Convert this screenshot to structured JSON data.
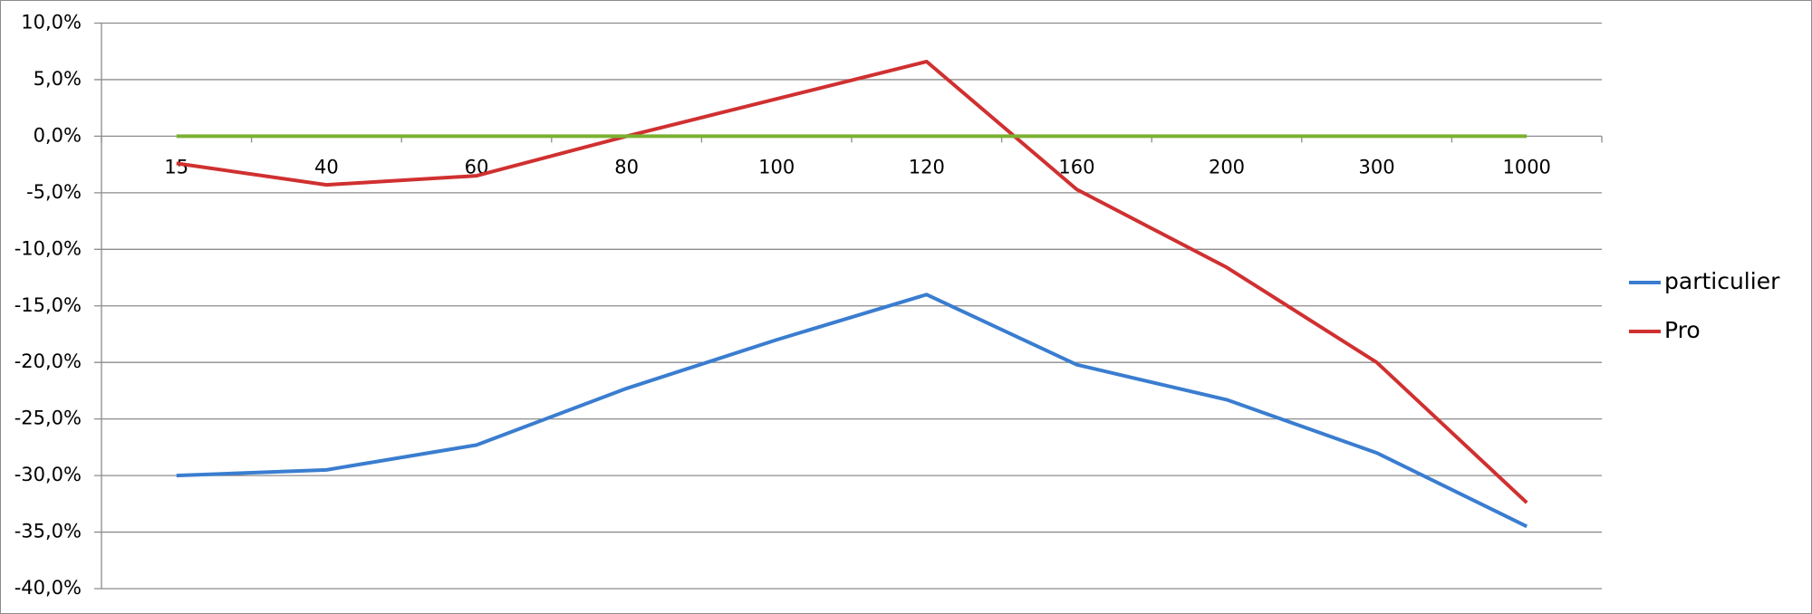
{
  "chart_data": {
    "type": "line",
    "categories": [
      "15",
      "40",
      "60",
      "80",
      "100",
      "120",
      "160",
      "200",
      "300",
      "1000"
    ],
    "series": [
      {
        "name": "particulier",
        "color": "#3a7dd0",
        "values": [
          -30.0,
          -29.5,
          -27.3,
          -22.3,
          -18.0,
          -14.0,
          -20.2,
          -23.3,
          -28.0,
          -34.5
        ]
      },
      {
        "name": "Pro",
        "color": "#d03030",
        "values": [
          -2.4,
          -4.3,
          -3.5,
          0.0,
          3.3,
          6.6,
          -4.7,
          -11.6,
          -20.0,
          -32.4
        ]
      },
      {
        "color": "#7ab030",
        "values": [
          0,
          0,
          0,
          0,
          0,
          0,
          0,
          0,
          0,
          0
        ]
      }
    ],
    "ylim": [
      -40,
      10
    ],
    "yticks": [
      {
        "value": -40,
        "label": "-40,0%"
      },
      {
        "value": -35,
        "label": "-35,0%"
      },
      {
        "value": -30,
        "label": "-30,0%"
      },
      {
        "value": -25,
        "label": "-25,0%"
      },
      {
        "value": -20,
        "label": "-20,0%"
      },
      {
        "value": -15,
        "label": "-15,0%"
      },
      {
        "value": -10,
        "label": "-10,0%"
      },
      {
        "value": -5,
        "label": "-5,0%"
      },
      {
        "value": 0,
        "label": "0,0%"
      },
      {
        "value": 5,
        "label": "5,0%"
      },
      {
        "value": 10,
        "label": "10,0%"
      }
    ],
    "grid": true,
    "legend": "right"
  }
}
